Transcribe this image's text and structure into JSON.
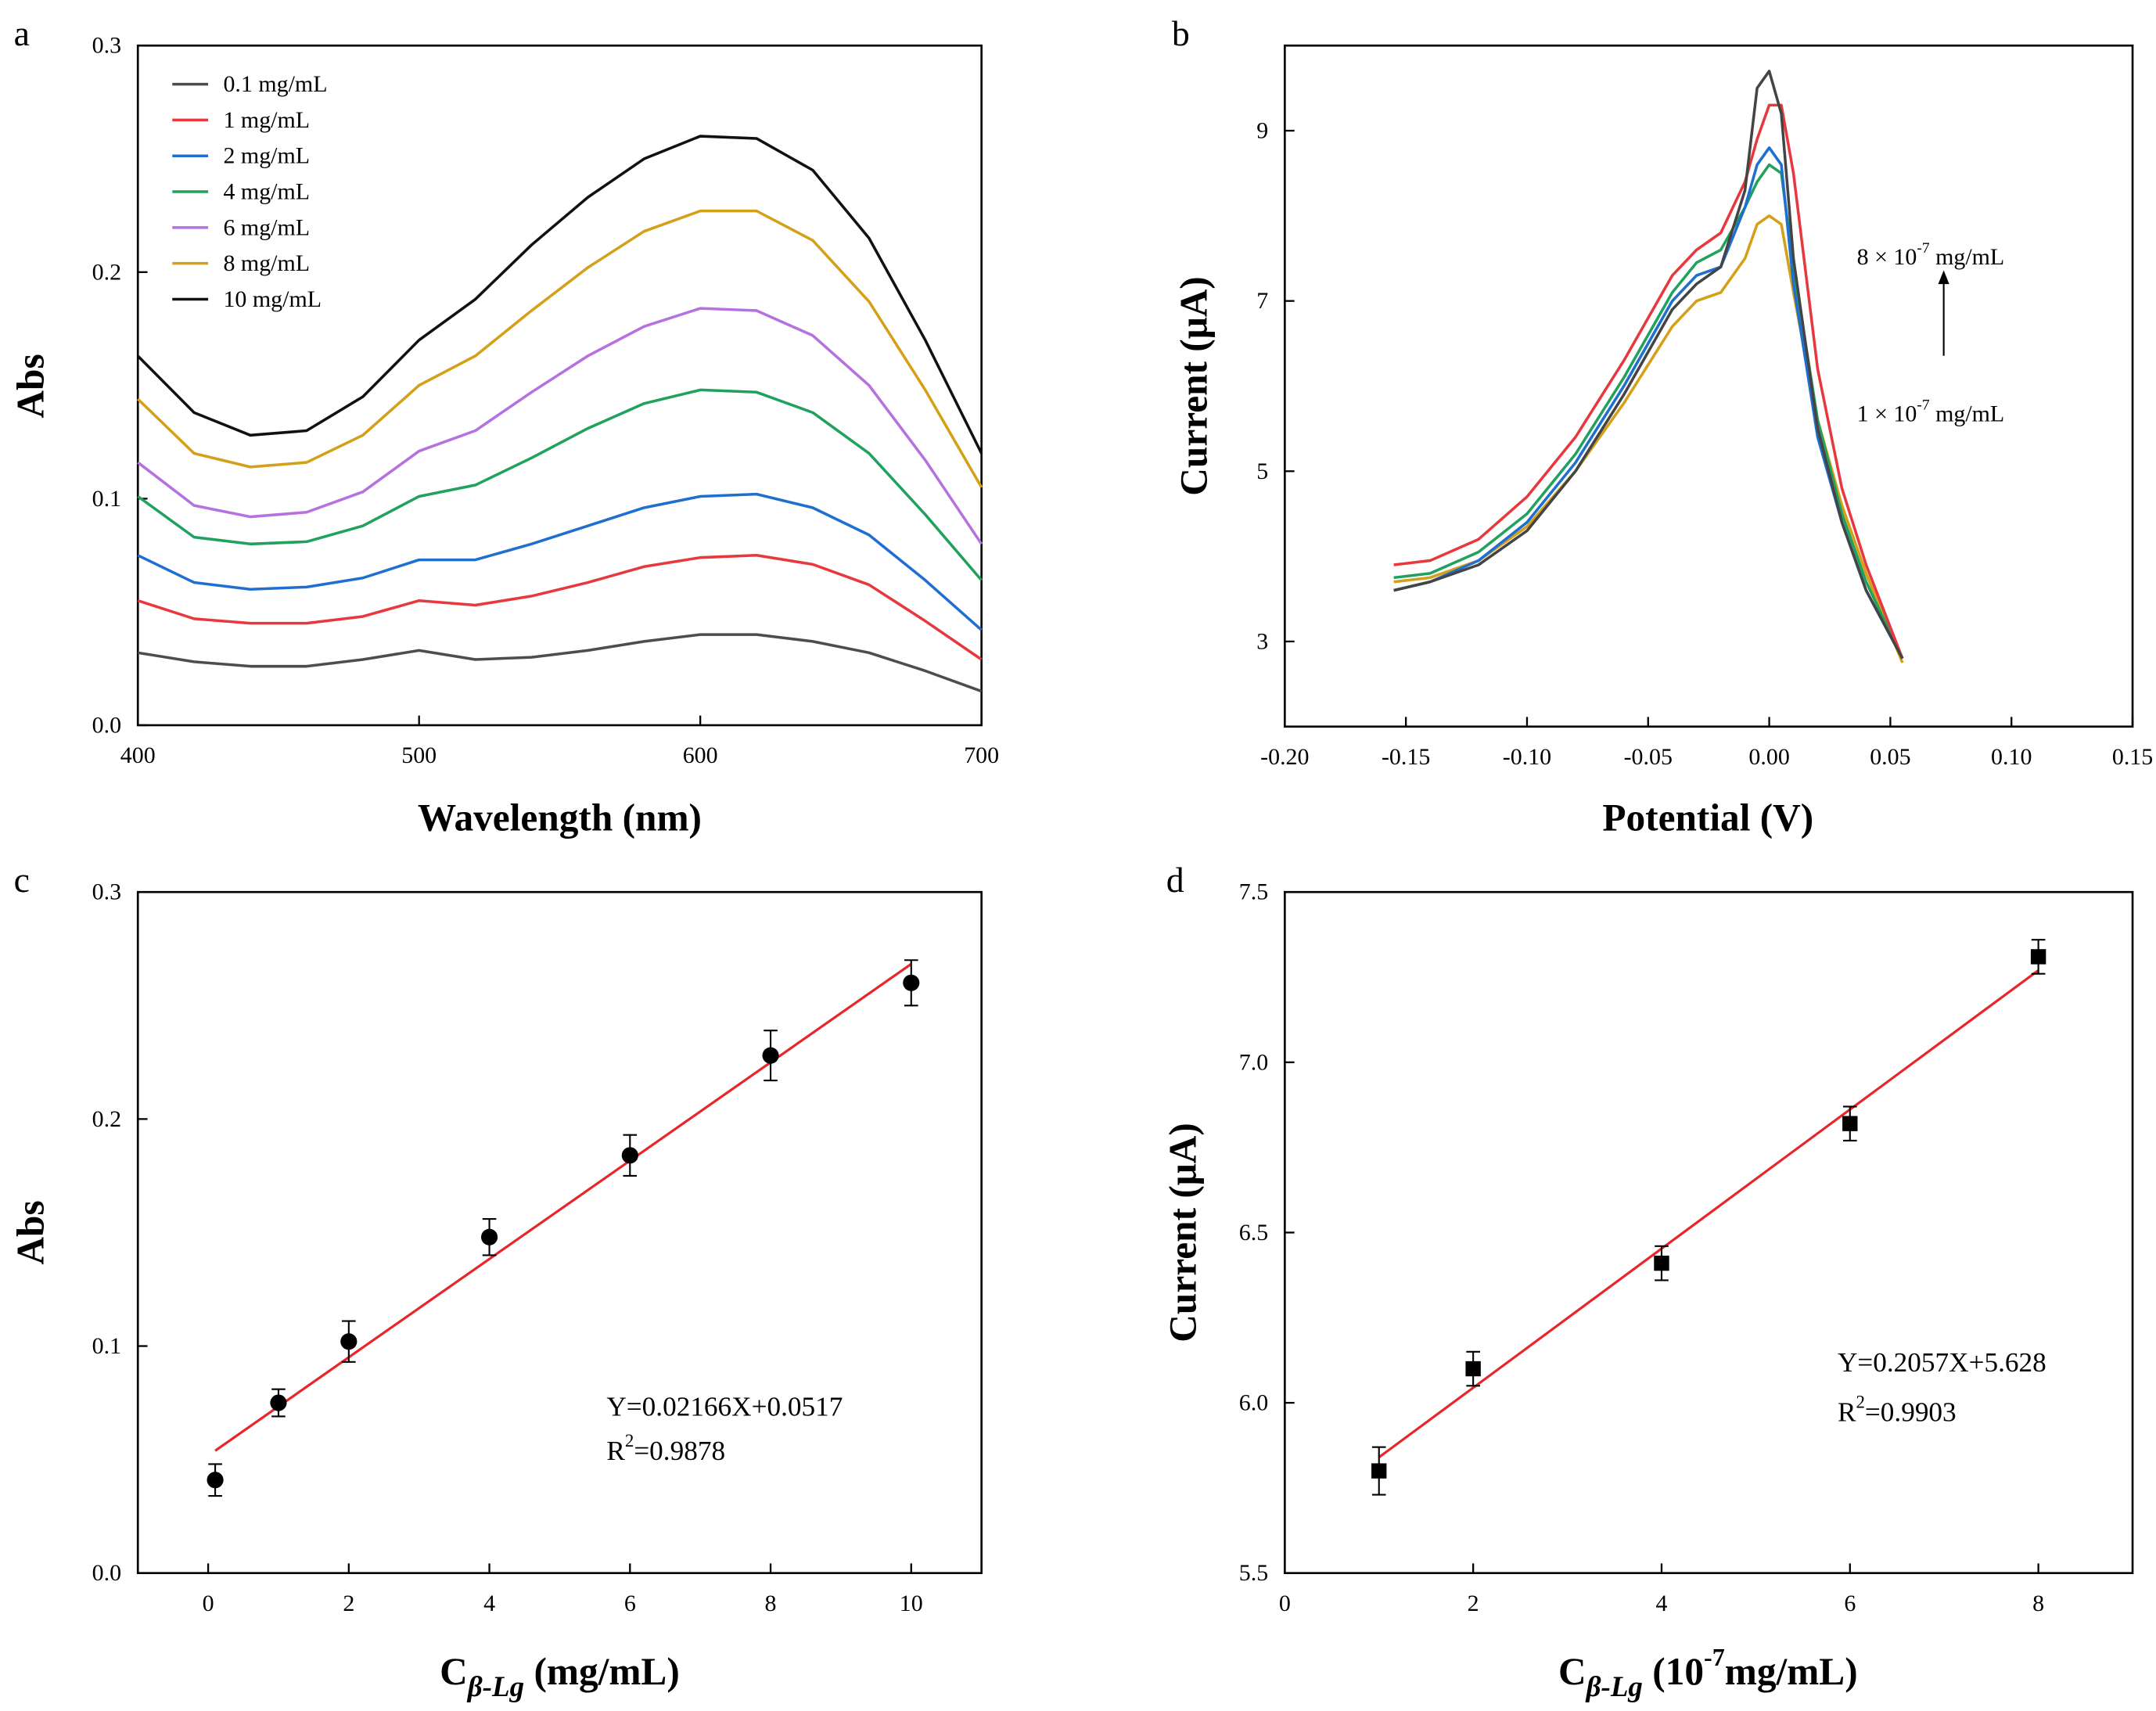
{
  "chart_data": [
    {
      "type": "line",
      "panel_label": "a",
      "ylabel": "Abs",
      "xlabel": "Wavelength (nm)",
      "xlim": [
        400,
        700
      ],
      "xticks": [
        400,
        500,
        600,
        700
      ],
      "ylim": [
        0,
        0.3
      ],
      "yticks": [
        {
          "value": 0,
          "label": "0.0"
        },
        {
          "value": 0.1,
          "label": "0.1"
        },
        {
          "value": 0.2,
          "label": "0.2"
        },
        {
          "value": 0.3,
          "label": "0.3"
        }
      ],
      "legend": "upper left",
      "x": [
        400,
        420,
        440,
        460,
        480,
        500,
        520,
        540,
        560,
        580,
        600,
        620,
        640,
        660,
        680,
        700
      ],
      "series": [
        {
          "name": "0.1 mg/mL",
          "color": "#4d4d4d",
          "values": [
            0.032,
            0.028,
            0.026,
            0.026,
            0.029,
            0.033,
            0.029,
            0.03,
            0.033,
            0.037,
            0.04,
            0.04,
            0.037,
            0.032,
            0.024,
            0.015
          ]
        },
        {
          "name": "1 mg/mL",
          "color": "#e8383d",
          "values": [
            0.055,
            0.047,
            0.045,
            0.045,
            0.048,
            0.055,
            0.053,
            0.057,
            0.063,
            0.07,
            0.074,
            0.075,
            0.071,
            0.062,
            0.046,
            0.029
          ]
        },
        {
          "name": "2 mg/mL",
          "color": "#1f6fd1",
          "values": [
            0.075,
            0.063,
            0.06,
            0.061,
            0.065,
            0.073,
            0.073,
            0.08,
            0.088,
            0.096,
            0.101,
            0.102,
            0.096,
            0.084,
            0.064,
            0.042
          ]
        },
        {
          "name": "4 mg/mL",
          "color": "#21a15e",
          "values": [
            0.101,
            0.083,
            0.08,
            0.081,
            0.088,
            0.101,
            0.106,
            0.118,
            0.131,
            0.142,
            0.148,
            0.147,
            0.138,
            0.12,
            0.093,
            0.064
          ]
        },
        {
          "name": "6 mg/mL",
          "color": "#b571e0",
          "values": [
            0.116,
            0.097,
            0.092,
            0.094,
            0.103,
            0.121,
            0.13,
            0.147,
            0.163,
            0.176,
            0.184,
            0.183,
            0.172,
            0.15,
            0.117,
            0.08
          ]
        },
        {
          "name": "8 mg/mL",
          "color": "#d4a017",
          "values": [
            0.144,
            0.12,
            0.114,
            0.116,
            0.128,
            0.15,
            0.163,
            0.183,
            0.202,
            0.218,
            0.227,
            0.227,
            0.214,
            0.187,
            0.148,
            0.105
          ]
        },
        {
          "name": "10 mg/mL",
          "color": "#111111",
          "values": [
            0.163,
            0.138,
            0.128,
            0.13,
            0.145,
            0.17,
            0.188,
            0.212,
            0.233,
            0.25,
            0.26,
            0.259,
            0.245,
            0.215,
            0.17,
            0.12
          ]
        }
      ]
    },
    {
      "type": "line",
      "panel_label": "b",
      "ylabel": "Current (μA)",
      "xlabel": "Potential (V)",
      "xlim": [
        -0.2,
        0.15
      ],
      "xticks": [
        {
          "value": -0.2,
          "label": "-0.20"
        },
        -0.15,
        {
          "value": -0.1,
          "label": "-0.10"
        },
        -0.05,
        {
          "value": 0,
          "label": "0.00"
        },
        0.05,
        {
          "value": 0.1,
          "label": "0.10"
        },
        0.15
      ],
      "ylim": [
        2,
        10
      ],
      "yticks": [
        3,
        5,
        7,
        9
      ],
      "x": [
        -0.155,
        -0.14,
        -0.12,
        -0.1,
        -0.08,
        -0.06,
        -0.04,
        -0.03,
        -0.02,
        -0.01,
        -0.005,
        0,
        0.005,
        0.01,
        0.02,
        0.03,
        0.04,
        0.055
      ],
      "series": [
        {
          "color": "#d4a017",
          "values": [
            3.7,
            3.75,
            3.95,
            4.35,
            5.0,
            5.8,
            6.7,
            7.0,
            7.1,
            7.5,
            7.9,
            8.0,
            7.9,
            7.1,
            5.6,
            4.6,
            3.8,
            2.75
          ]
        },
        {
          "color": "#21a15e",
          "values": [
            3.75,
            3.8,
            4.05,
            4.5,
            5.2,
            6.1,
            7.1,
            7.45,
            7.6,
            8.1,
            8.4,
            8.6,
            8.5,
            7.4,
            5.6,
            4.5,
            3.7,
            2.8
          ]
        },
        {
          "color": "#1f6fd1",
          "values": [
            3.6,
            3.7,
            3.95,
            4.4,
            5.1,
            6.0,
            7.0,
            7.3,
            7.4,
            8.1,
            8.6,
            8.8,
            8.6,
            7.2,
            5.4,
            4.4,
            3.6,
            2.8
          ]
        },
        {
          "color": "#e8383d",
          "values": [
            3.9,
            3.95,
            4.2,
            4.7,
            5.4,
            6.3,
            7.3,
            7.6,
            7.8,
            8.4,
            8.9,
            9.3,
            9.3,
            8.5,
            6.2,
            4.8,
            3.9,
            2.8
          ]
        },
        {
          "color": "#444444",
          "values": [
            3.6,
            3.7,
            3.9,
            4.3,
            5.0,
            5.9,
            6.9,
            7.2,
            7.4,
            8.3,
            9.5,
            9.7,
            9.2,
            7.5,
            5.5,
            4.4,
            3.6,
            2.8
          ]
        }
      ],
      "annotations": [
        {
          "parts": [
            {
              "text": "8 × 10",
              "pos": "base"
            },
            {
              "text": "-7",
              "pos": "sup"
            },
            {
              "text": " mg/mL",
              "pos": "base"
            }
          ]
        },
        {
          "parts": [
            {
              "text": "1 ×  10",
              "pos": "base"
            },
            {
              "text": "-7",
              "pos": "sup"
            },
            {
              "text": " mg/mL",
              "pos": "base"
            }
          ]
        }
      ]
    },
    {
      "type": "scatter",
      "panel_label": "c",
      "ylabel": "Abs",
      "marker": "circle",
      "xlabel": [
        {
          "text": "C",
          "pos": "base"
        },
        {
          "text": "β-Lg",
          "pos": "sub"
        },
        {
          "text": " (mg/mL)",
          "pos": "base"
        }
      ],
      "xlim": [
        -1,
        11
      ],
      "xticks": [
        0,
        2,
        4,
        6,
        8,
        10
      ],
      "ylim": [
        0,
        0.3
      ],
      "yticks": [
        {
          "value": 0,
          "label": "0.0"
        },
        {
          "value": 0.1,
          "label": "0.1"
        },
        {
          "value": 0.2,
          "label": "0.2"
        },
        {
          "value": 0.3,
          "label": "0.3"
        }
      ],
      "x": [
        0.1,
        1,
        2,
        4,
        6,
        8,
        10
      ],
      "values": [
        0.041,
        0.075,
        0.102,
        0.148,
        0.184,
        0.228,
        0.26
      ],
      "errors": [
        0.007,
        0.006,
        0.009,
        0.008,
        0.009,
        0.011,
        0.01
      ],
      "color": "#000000",
      "fit": {
        "x": [
          0.1,
          10
        ],
        "values": [
          0.0539,
          0.2683
        ],
        "color": "#e8262a"
      },
      "annotations": [
        {
          "parts": [
            {
              "text": "Y=0.02166X+0.0517",
              "pos": "base"
            }
          ]
        },
        {
          "parts": [
            {
              "text": "R",
              "pos": "base"
            },
            {
              "text": "2",
              "pos": "sup"
            },
            {
              "text": "=0.9878",
              "pos": "base"
            }
          ]
        }
      ]
    },
    {
      "type": "scatter",
      "panel_label": "d",
      "ylabel": "Current (μA)",
      "marker": "square",
      "xlabel": [
        {
          "text": "C",
          "pos": "base"
        },
        {
          "text": "β-Lg",
          "pos": "sub"
        },
        {
          "text": " (10",
          "pos": "base"
        },
        {
          "text": "-7",
          "pos": "sup"
        },
        {
          "text": "mg/mL)",
          "pos": "base"
        }
      ],
      "xlim": [
        0,
        9
      ],
      "xticks": [
        0,
        2,
        4,
        6,
        8
      ],
      "ylim": [
        5.5,
        7.5
      ],
      "yticks": [
        5.5,
        {
          "value": 6,
          "label": "6.0"
        },
        6.5,
        {
          "value": 7,
          "label": "7.0"
        },
        7.5
      ],
      "x": [
        1,
        2,
        4,
        6,
        8
      ],
      "values": [
        5.8,
        6.1,
        6.41,
        6.82,
        7.31
      ],
      "errors": [
        0.07,
        0.05,
        0.05,
        0.05,
        0.05
      ],
      "color": "#000000",
      "fit": {
        "x": [
          1,
          8
        ],
        "values": [
          5.84,
          7.27
        ],
        "color": "#e8262a"
      },
      "annotations": [
        {
          "parts": [
            {
              "text": "Y=0.2057X+5.628",
              "pos": "base"
            }
          ]
        },
        {
          "parts": [
            {
              "text": "R",
              "pos": "base"
            },
            {
              "text": "2",
              "pos": "sup"
            },
            {
              "text": "=0.9903",
              "pos": "base"
            }
          ]
        }
      ]
    }
  ]
}
